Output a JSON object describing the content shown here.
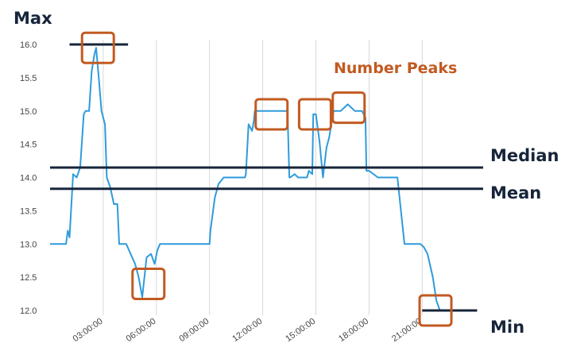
{
  "chart_data": {
    "type": "line",
    "title": "",
    "xlabel": "",
    "ylabel": "",
    "ylim": [
      12.0,
      16.0
    ],
    "y_ticks": [
      "16.0",
      "15.5",
      "15.0",
      "14.5",
      "14.0",
      "13.5",
      "13.0",
      "12.5",
      "12.0"
    ],
    "x_ticks": [
      "03:00:00",
      "06:00:00",
      "09:00:00",
      "12:00:00",
      "15:00:00",
      "18:00:00",
      "21:00:00"
    ],
    "x_range_hours": [
      0.0,
      24.5
    ],
    "grid": "vertical",
    "series": [
      {
        "color": "#2e9bdc",
        "x": [
          0.0,
          0.5,
          0.9,
          1.0,
          1.1,
          1.3,
          1.5,
          1.7,
          1.9,
          2.0,
          2.2,
          2.35,
          2.5,
          2.6,
          2.75,
          2.9,
          3.1,
          3.2,
          3.4,
          3.6,
          3.8,
          3.9,
          4.05,
          4.2,
          4.3,
          4.8,
          5.0,
          5.2,
          5.45,
          5.7,
          5.9,
          6.05,
          6.2,
          6.35,
          6.5,
          7.0,
          7.5,
          8.0,
          8.5,
          9.0,
          9.05,
          9.3,
          9.5,
          9.8,
          10.0,
          10.5,
          11.0,
          11.05,
          11.2,
          11.4,
          11.5,
          11.55,
          11.7,
          11.9,
          12.5,
          13.0,
          13.4,
          13.5,
          13.55,
          13.8,
          14.0,
          14.5,
          14.6,
          14.8,
          14.85,
          15.0,
          15.2,
          15.4,
          15.6,
          15.75,
          16.0,
          16.4,
          16.8,
          17.2,
          17.6,
          17.8,
          17.85,
          18.0,
          18.5,
          19.0,
          19.2,
          19.4,
          19.6,
          20.0,
          20.5,
          20.9,
          21.1,
          21.3,
          21.6,
          21.8,
          22.0
        ],
        "y": [
          13.0,
          13.0,
          13.0,
          13.2,
          13.1,
          14.05,
          14.0,
          14.15,
          14.95,
          15.0,
          15.0,
          15.6,
          15.85,
          15.95,
          15.5,
          15.0,
          14.8,
          14.0,
          13.85,
          13.6,
          13.6,
          13.0,
          13.0,
          13.0,
          13.0,
          12.7,
          12.5,
          12.2,
          12.8,
          12.85,
          12.7,
          12.9,
          13.0,
          13.0,
          13.0,
          13.0,
          13.0,
          13.0,
          13.0,
          13.0,
          13.2,
          13.7,
          13.9,
          14.0,
          14.0,
          14.0,
          14.0,
          14.05,
          14.8,
          14.7,
          14.85,
          15.0,
          15.0,
          15.0,
          15.0,
          15.0,
          15.0,
          14.0,
          14.0,
          14.05,
          14.0,
          14.0,
          14.1,
          14.05,
          14.95,
          14.95,
          14.55,
          14.0,
          14.45,
          14.6,
          15.0,
          15.0,
          15.1,
          15.0,
          15.0,
          14.9,
          14.1,
          14.1,
          14.0,
          14.0,
          14.0,
          14.0,
          14.0,
          13.0,
          13.0,
          13.0,
          12.95,
          12.85,
          12.5,
          12.15,
          12.0
        ]
      }
    ],
    "reference_lines": [
      {
        "name": "Median",
        "y": 14.15
      },
      {
        "name": "Mean",
        "y": 13.83
      }
    ],
    "annotations": {
      "max": "Max",
      "min": "Min",
      "median": "Median",
      "mean": "Mean",
      "peaks": "Number Peaks"
    },
    "peak_boxes": [
      {
        "x": 2.7,
        "y": 15.95
      },
      {
        "x": 5.55,
        "y": 12.4
      },
      {
        "x": 12.5,
        "y": 14.95
      },
      {
        "x": 14.95,
        "y": 14.95
      },
      {
        "x": 16.85,
        "y": 15.05
      },
      {
        "x": 21.75,
        "y": 12.0
      }
    ],
    "max_line": {
      "x": [
        1.1,
        4.4
      ],
      "y": 16.0
    },
    "min_line": {
      "x": [
        21.0,
        24.1
      ],
      "y": 12.0
    },
    "colors": {
      "line": "#2e9bdc",
      "reference": "#17253a",
      "highlight": "#c25a21",
      "grid": "#d9d9d9"
    }
  }
}
